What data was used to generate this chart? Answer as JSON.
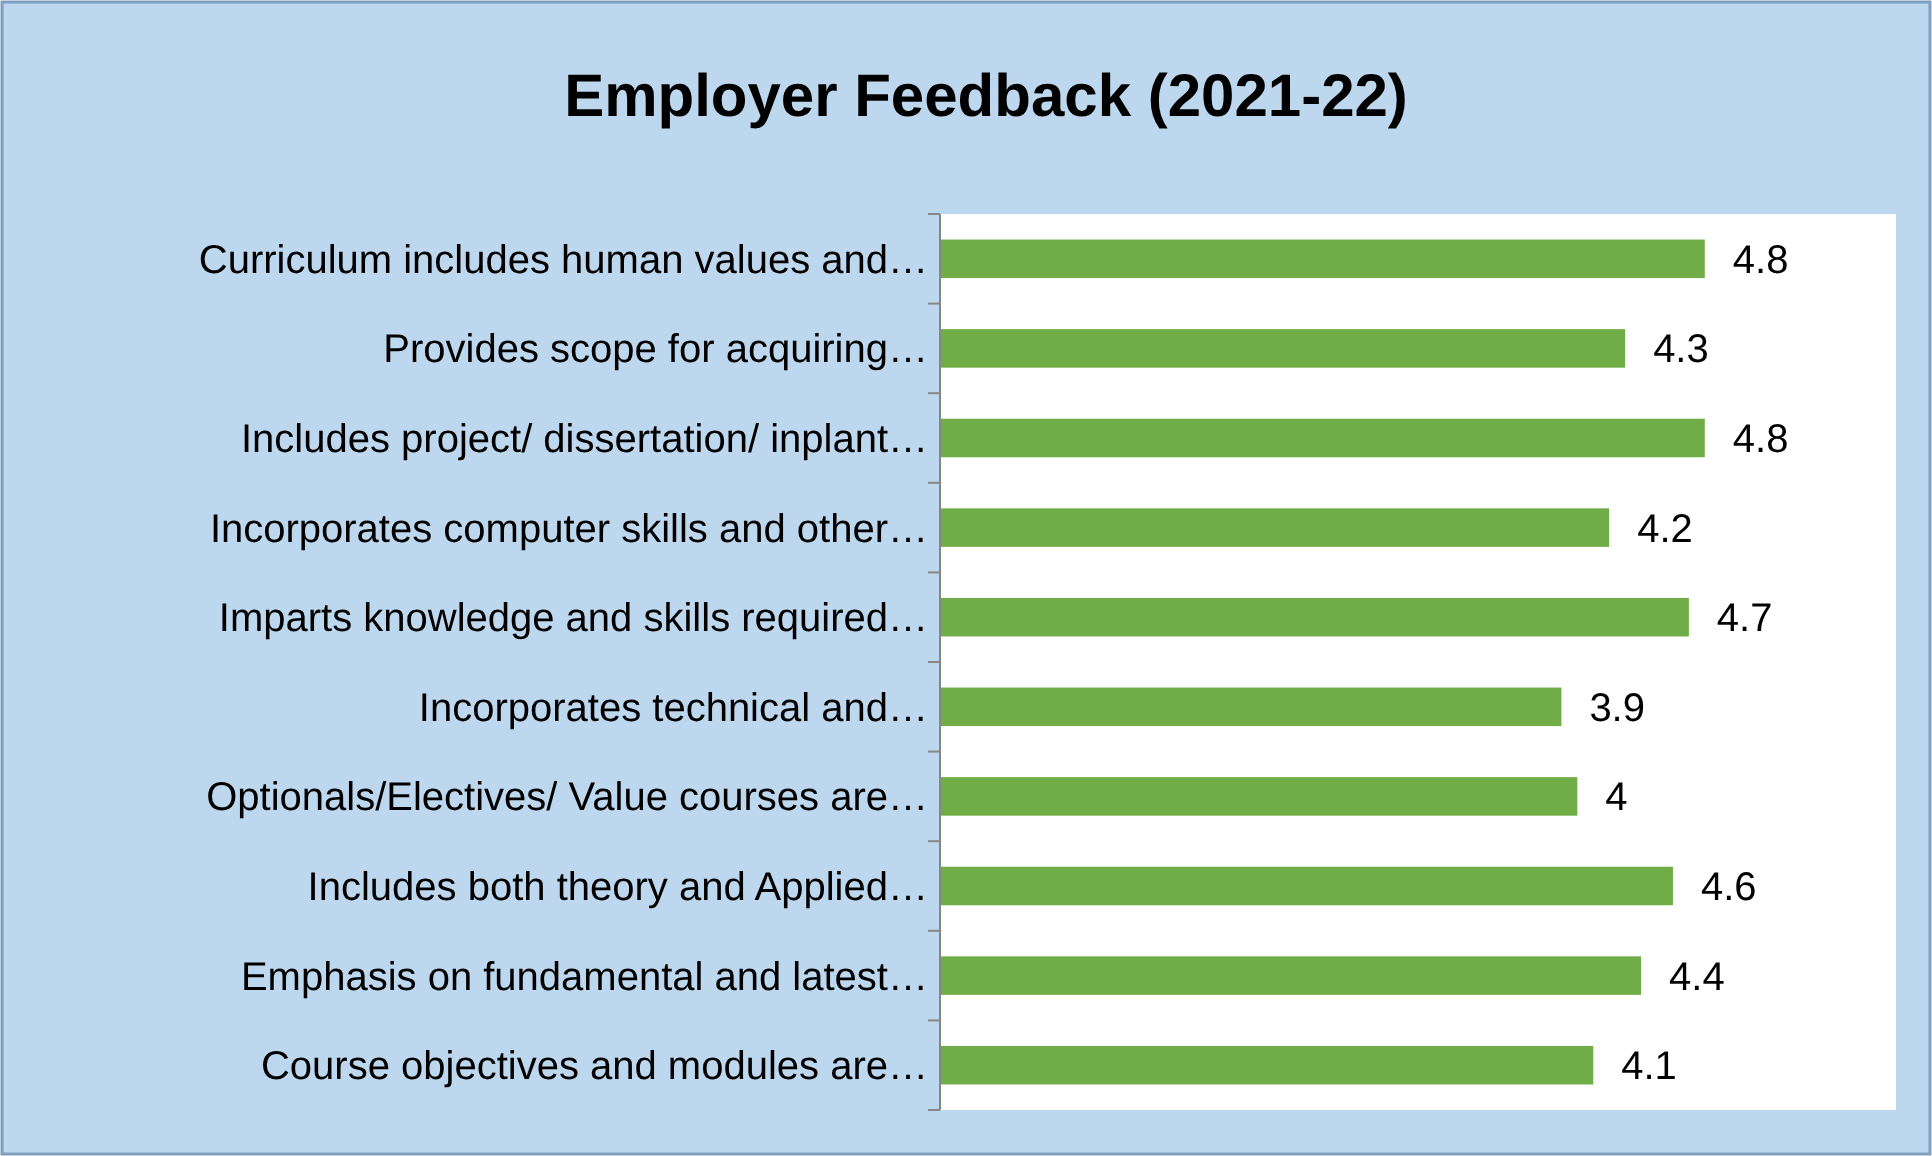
{
  "chart_data": {
    "type": "bar",
    "orientation": "horizontal",
    "title": "Employer Feedback (2021-22)",
    "categories": [
      "Curriculum includes human values and…",
      "Provides scope for acquiring…",
      "Includes project/ dissertation/ inplant…",
      "Incorporates computer skills and other…",
      "Imparts knowledge and skills required…",
      "Incorporates technical and…",
      "Optionals/Electives/ Value courses are…",
      "Includes both theory and Applied…",
      "Emphasis on fundamental and latest…",
      "Course objectives and modules are…"
    ],
    "values": [
      4.8,
      4.3,
      4.8,
      4.2,
      4.7,
      3.9,
      4,
      4.6,
      4.4,
      4.1
    ],
    "color": "#70ad47",
    "xlim": [
      0,
      6
    ],
    "data_labels": true
  }
}
